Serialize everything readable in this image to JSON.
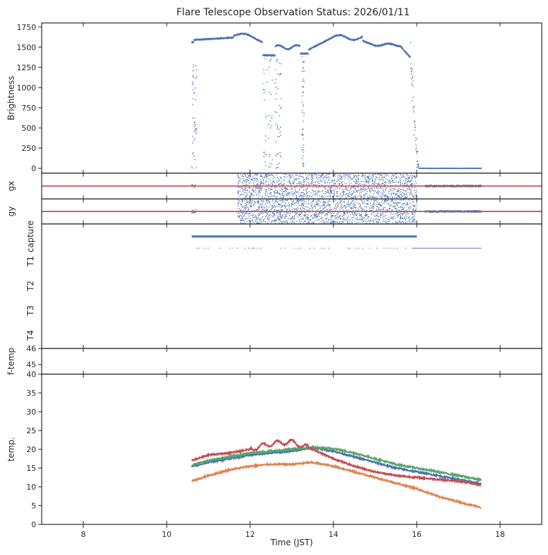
{
  "title": "Flare Telescope Observation Status: 2026/01/11",
  "xlabel": "Time (JST)",
  "x_ticks": [
    8,
    10,
    12,
    14,
    16,
    18
  ],
  "x_range": [
    7,
    19
  ],
  "colors": {
    "blue": "#4c72b0",
    "orange": "#dd8452",
    "green": "#55a868",
    "red": "#c44e52",
    "axis": "#262626"
  },
  "chart_data": [
    {
      "id": "brightness",
      "type": "scatter",
      "ylabel": "Brightness",
      "ylim": [
        -60,
        1800
      ],
      "yticks": [
        0,
        250,
        500,
        750,
        1000,
        1250,
        1500,
        1750
      ],
      "series": [
        {
          "name": "brightness",
          "color": "blue",
          "description": "~1600 from 10.6h to 16h with dropouts near 12.3h and 13.3h; ~0 from 16.05h to 17.55h"
        }
      ]
    },
    {
      "id": "gx",
      "type": "scatter",
      "ylabel": "gx",
      "ylim": [
        -1,
        1
      ],
      "yticks": [],
      "reference_line": {
        "y": 0,
        "color": "red"
      },
      "series": [
        {
          "name": "gx",
          "color": "blue",
          "description": "scattered noise between 11.7h and 16h, flat near 0 from 16.2h to 17.55h"
        }
      ]
    },
    {
      "id": "gy",
      "type": "scatter",
      "ylabel": "gy",
      "ylim": [
        -1,
        1
      ],
      "yticks": [],
      "reference_line": {
        "y": 0,
        "color": "red"
      },
      "series": [
        {
          "name": "gy",
          "color": "blue",
          "description": "scattered noise between 11.7h and 16h, flat near 0 from 16.2h to 17.55h"
        }
      ]
    },
    {
      "id": "status",
      "type": "scatter",
      "ylabel": "",
      "categories": [
        "capture",
        "T1",
        "T2",
        "T3",
        "T4"
      ],
      "series": [
        {
          "name": "capture",
          "color": "blue",
          "x_range": [
            10.6,
            16.0
          ]
        },
        {
          "name": "T1",
          "color": "blue",
          "x_range": [
            15.9,
            17.55
          ],
          "sparse_from": 10.6
        }
      ]
    },
    {
      "id": "f-temp",
      "type": "scatter",
      "ylabel": "f-temp",
      "ylim": [
        44.4,
        46
      ],
      "yticks": [
        45,
        46
      ],
      "series": []
    },
    {
      "id": "temp",
      "type": "line",
      "ylabel": "temp.",
      "ylim": [
        0,
        40
      ],
      "yticks": [
        0,
        5,
        10,
        15,
        20,
        25,
        30,
        35,
        40
      ],
      "x": [
        10.6,
        11,
        11.5,
        12,
        12.5,
        13,
        13.5,
        14,
        14.5,
        15,
        15.5,
        16,
        16.5,
        17,
        17.55
      ],
      "series": [
        {
          "name": "blue",
          "color": "blue",
          "values": [
            15.5,
            16.5,
            17.5,
            18.5,
            19.0,
            19.5,
            20.5,
            19.5,
            18.0,
            16.5,
            15.0,
            14.0,
            13.0,
            12.0,
            10.8
          ]
        },
        {
          "name": "orange",
          "color": "orange",
          "values": [
            11.5,
            13.0,
            14.5,
            15.5,
            16.0,
            16.0,
            16.5,
            15.5,
            14.0,
            12.5,
            11.0,
            9.5,
            7.5,
            6.0,
            4.5
          ]
        },
        {
          "name": "green",
          "color": "green",
          "values": [
            15.8,
            17.0,
            18.0,
            19.0,
            19.5,
            20.0,
            20.5,
            20.2,
            19.0,
            17.5,
            16.0,
            15.0,
            14.0,
            13.0,
            11.8
          ]
        },
        {
          "name": "red",
          "color": "red",
          "values": [
            17.0,
            18.5,
            19.0,
            20.0,
            21.5,
            22.0,
            20.0,
            17.5,
            15.5,
            14.0,
            13.0,
            12.5,
            12.0,
            11.5,
            10.5
          ]
        }
      ]
    }
  ]
}
